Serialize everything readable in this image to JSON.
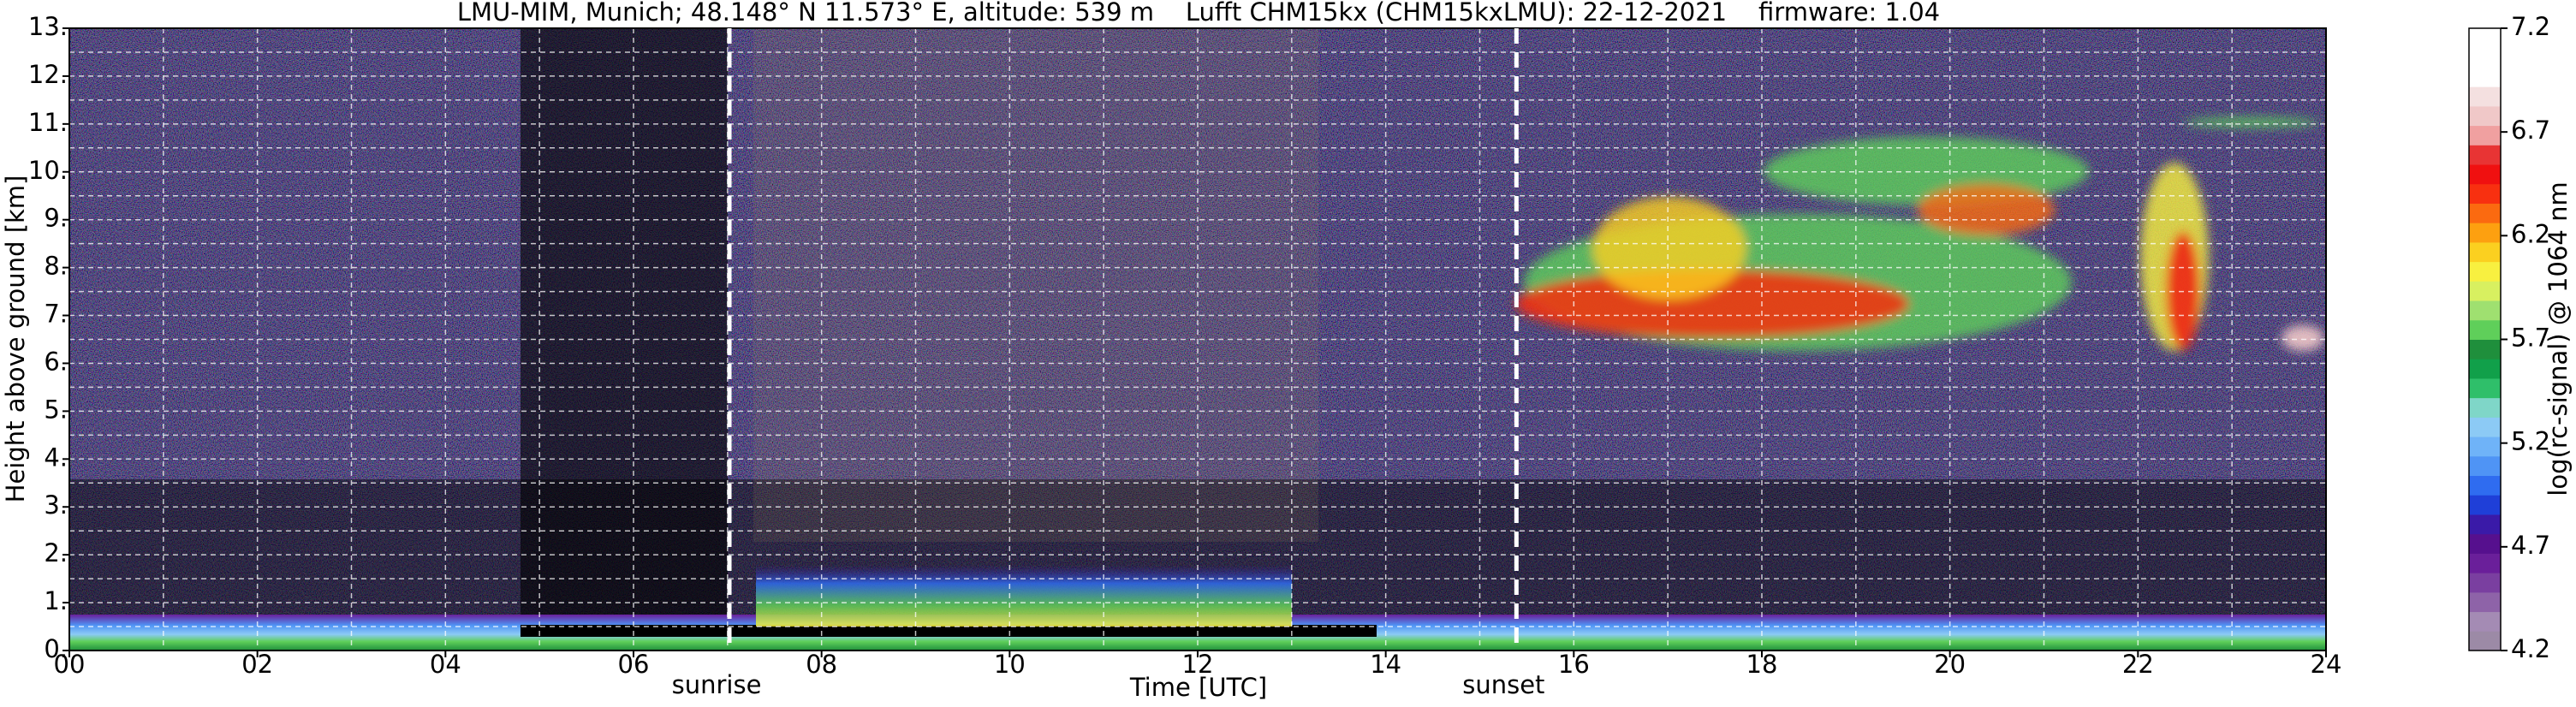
{
  "chart_data": {
    "type": "heatmap",
    "title": "LMU-MIM, Munich; 48.148° N 11.573° E, altitude: 539 m    Lufft CHM15kx (CHM15kxLMU): 22-12-2021    firmware: 1.04",
    "x_label": "Time [UTC]",
    "y_label": "Height above ground [km]",
    "xlim": [
      0,
      24
    ],
    "xticks": [
      {
        "value": 0,
        "label": "00"
      },
      {
        "value": 2,
        "label": "02"
      },
      {
        "value": 4,
        "label": "04"
      },
      {
        "value": 6,
        "label": "06"
      },
      {
        "value": 8,
        "label": "08"
      },
      10,
      12,
      14,
      16,
      18,
      20,
      22,
      24
    ],
    "x_minor_ticks": [
      1,
      3,
      5,
      7,
      9,
      11,
      13,
      15,
      17,
      19,
      21,
      23
    ],
    "ylim": [
      0,
      13
    ],
    "yticks": [
      {
        "value": 0,
        "label": "0."
      },
      {
        "value": 1,
        "label": "1."
      },
      {
        "value": 2,
        "label": "2."
      },
      {
        "value": 3,
        "label": "3."
      },
      {
        "value": 4,
        "label": "4."
      },
      {
        "value": 5,
        "label": "5."
      },
      {
        "value": 6,
        "label": "6."
      },
      {
        "value": 7,
        "label": "7."
      },
      {
        "value": 8,
        "label": "8."
      },
      {
        "value": 9,
        "label": "9."
      },
      {
        "value": 10,
        "label": "10."
      },
      {
        "value": 11,
        "label": "11."
      },
      {
        "value": 12,
        "label": "12."
      },
      {
        "value": 13,
        "label": "13."
      }
    ],
    "y_minor_ticks": [
      0.5,
      1.5,
      2.5,
      3.5,
      4.5,
      5.5,
      6.5,
      7.5,
      8.5,
      9.5,
      10.5,
      11.5,
      12.5
    ],
    "grid": true,
    "annotations": [
      {
        "label": "sunrise",
        "x": 7.02
      },
      {
        "label": "sunset",
        "x": 15.39
      }
    ],
    "colorbar": {
      "label": "log(rc-signal) @ 1064 nm",
      "lim": [
        4.2,
        7.2
      ],
      "ticks": [
        4.2,
        4.7,
        5.2,
        5.7,
        6.2,
        6.7,
        7.2
      ],
      "colormap": [
        "#9c8aa6",
        "#a48bb4",
        "#8e63a8",
        "#7a3fa0",
        "#6a1f9a",
        "#56108e",
        "#3a1aa8",
        "#1f3fd8",
        "#2f6cf0",
        "#4f94f5",
        "#6fb3f8",
        "#8ccaf5",
        "#7fd6c8",
        "#2fbf6a",
        "#11a04a",
        "#1f8f3c",
        "#5fcf5a",
        "#9fe070",
        "#d8f060",
        "#f8f040",
        "#fbd020",
        "#fda010",
        "#fb6a10",
        "#f83010",
        "#f01010",
        "#e83434",
        "#f0a0a0",
        "#f0c8c8",
        "#f4e0e0",
        "#ffffff",
        "#ffffff",
        "#ffffff"
      ]
    }
  }
}
